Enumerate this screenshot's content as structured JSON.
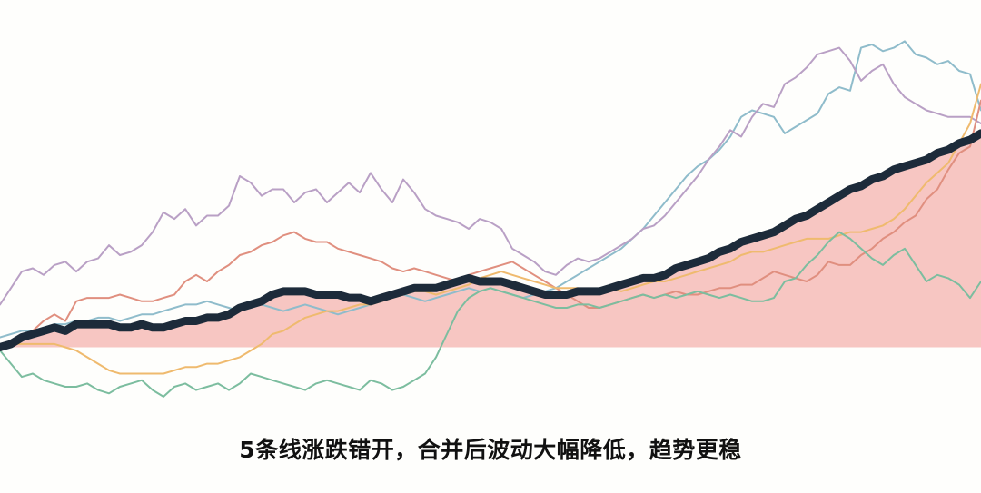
{
  "caption": "5条线涨跌错开，合并后波动大幅降低，趋势更稳",
  "chart_data": {
    "type": "line",
    "title": "",
    "xlabel": "",
    "ylabel": "",
    "grid": false,
    "legend": "none",
    "x": [
      0,
      1,
      2,
      3,
      4,
      5,
      6,
      7,
      8,
      9,
      10,
      11,
      12,
      13,
      14,
      15,
      16,
      17,
      18,
      19,
      20,
      21,
      22,
      23,
      24,
      25,
      26,
      27,
      28,
      29,
      30,
      31,
      32,
      33,
      34,
      35,
      36,
      37,
      38,
      39,
      40,
      41,
      42,
      43,
      44,
      45,
      46,
      47,
      48,
      49,
      50,
      51,
      52,
      53,
      54,
      55,
      56,
      57,
      58,
      59,
      60,
      61,
      62,
      63,
      64,
      65,
      66,
      67,
      68,
      69,
      70,
      71,
      72,
      73,
      74,
      75,
      76,
      77,
      78,
      79,
      80,
      81,
      82,
      83,
      84,
      85,
      86,
      87,
      88,
      89,
      90
    ],
    "xlim": [
      0,
      90
    ],
    "ylim": [
      -20,
      100
    ],
    "baseline": 0,
    "series": [
      {
        "color": "#8fbccb",
        "width": 2,
        "values": [
          3,
          4,
          5,
          5,
          6,
          7,
          7,
          8,
          8,
          9,
          9,
          8,
          9,
          10,
          10,
          11,
          12,
          13,
          13,
          14,
          13,
          12,
          11,
          12,
          13,
          12,
          11,
          12,
          13,
          12,
          11,
          10,
          11,
          12,
          13,
          14,
          15,
          16,
          15,
          14,
          15,
          16,
          17,
          18,
          17,
          18,
          17,
          16,
          15,
          16,
          17,
          18,
          20,
          22,
          24,
          26,
          28,
          30,
          33,
          36,
          40,
          44,
          48,
          52,
          55,
          57,
          60,
          64,
          70,
          72,
          71,
          70,
          65,
          67,
          69,
          71,
          77,
          79,
          78,
          91,
          92,
          90,
          91,
          93,
          89,
          88,
          86,
          87,
          84,
          83,
          72
        ]
      },
      {
        "color": "#b9a0c5",
        "width": 2,
        "values": [
          13,
          18,
          23,
          24,
          22,
          25,
          26,
          23,
          26,
          27,
          31,
          28,
          29,
          31,
          35,
          41,
          39,
          42,
          37,
          40,
          40,
          43,
          52,
          50,
          46,
          48,
          48,
          44,
          47,
          48,
          44,
          47,
          50,
          47,
          53,
          48,
          44,
          51,
          47,
          42,
          40,
          39,
          38,
          36,
          39,
          38,
          36,
          30,
          28,
          26,
          23,
          22,
          25,
          27,
          26,
          27,
          29,
          31,
          33,
          36,
          37,
          40,
          44,
          48,
          52,
          57,
          61,
          66,
          64,
          70,
          74,
          73,
          80,
          82,
          85,
          89,
          90,
          91,
          87,
          81,
          84,
          86,
          80,
          76,
          74,
          72,
          71,
          70,
          70,
          70,
          68
        ]
      },
      {
        "color": "#e08f7f",
        "width": 2,
        "values": [
          0,
          0,
          2,
          5,
          8,
          10,
          8,
          14,
          15,
          15,
          15,
          16,
          15,
          14,
          14,
          15,
          16,
          20,
          22,
          20,
          23,
          25,
          28,
          29,
          31,
          32,
          34,
          35,
          33,
          32,
          32,
          30,
          29,
          28,
          27,
          26,
          24,
          23,
          24,
          23,
          22,
          21,
          20,
          22,
          23,
          24,
          25,
          26,
          24,
          22,
          20,
          18,
          16,
          14,
          12,
          12,
          13,
          14,
          15,
          16,
          15,
          16,
          17,
          16,
          16,
          17,
          18,
          18,
          19,
          19,
          21,
          23,
          22,
          21,
          20,
          22,
          26,
          25,
          25,
          28,
          30,
          33,
          35,
          38,
          40,
          45,
          48,
          54,
          59,
          61,
          75
        ]
      },
      {
        "color": "#efba6e",
        "width": 2,
        "values": [
          0,
          1,
          1,
          1,
          1,
          1,
          0,
          -1,
          -3,
          -5,
          -7,
          -8,
          -8,
          -8,
          -8,
          -8,
          -7,
          -6,
          -6,
          -5,
          -5,
          -4,
          -3,
          -1,
          1,
          4,
          5,
          7,
          9,
          10,
          11,
          11,
          12,
          13,
          13,
          14,
          15,
          16,
          17,
          17,
          16,
          17,
          18,
          19,
          21,
          22,
          23,
          22,
          21,
          20,
          19,
          18,
          18,
          18,
          17,
          17,
          18,
          17,
          18,
          19,
          20,
          20,
          21,
          22,
          23,
          24,
          25,
          26,
          28,
          29,
          29,
          30,
          31,
          32,
          33,
          33,
          33,
          34,
          35,
          35,
          36,
          37,
          39,
          42,
          46,
          50,
          53,
          56,
          62,
          68,
          80
        ]
      },
      {
        "color": "#7cbd9f",
        "width": 2,
        "values": [
          -1,
          -5,
          -9,
          -8,
          -10,
          -11,
          -12,
          -12,
          -11,
          -13,
          -14,
          -12,
          -11,
          -10,
          -13,
          -15,
          -12,
          -11,
          -13,
          -12,
          -11,
          -13,
          -11,
          -8,
          -9,
          -10,
          -11,
          -12,
          -13,
          -11,
          -10,
          -11,
          -12,
          -13,
          -10,
          -11,
          -13,
          -12,
          -10,
          -8,
          -3,
          4,
          11,
          15,
          17,
          18,
          17,
          16,
          15,
          14,
          13,
          12,
          12,
          13,
          13,
          12,
          13,
          14,
          15,
          16,
          15,
          16,
          15,
          16,
          17,
          16,
          15,
          16,
          15,
          14,
          14,
          15,
          20,
          21,
          25,
          28,
          32,
          35,
          33,
          30,
          27,
          25,
          28,
          30,
          25,
          20,
          22,
          21,
          19,
          15,
          20
        ]
      },
      {
        "color": "#1d2b3a",
        "width": 9,
        "fill": "#f7c6c2",
        "values": [
          0,
          1,
          3,
          4,
          5,
          6,
          5,
          7,
          7,
          7,
          7,
          6,
          6,
          7,
          6,
          6,
          7,
          8,
          8,
          9,
          9,
          10,
          12,
          13,
          14,
          16,
          17,
          17,
          17,
          16,
          16,
          16,
          15,
          15,
          14,
          15,
          16,
          17,
          18,
          18,
          18,
          19,
          20,
          21,
          20,
          20,
          20,
          19,
          18,
          17,
          16,
          16,
          16,
          17,
          17,
          17,
          18,
          19,
          20,
          21,
          21,
          22,
          24,
          25,
          26,
          27,
          29,
          30,
          32,
          33,
          34,
          35,
          37,
          39,
          40,
          42,
          44,
          46,
          48,
          49,
          51,
          52,
          54,
          55,
          56,
          57,
          59,
          60,
          62,
          63,
          65
        ]
      }
    ]
  }
}
